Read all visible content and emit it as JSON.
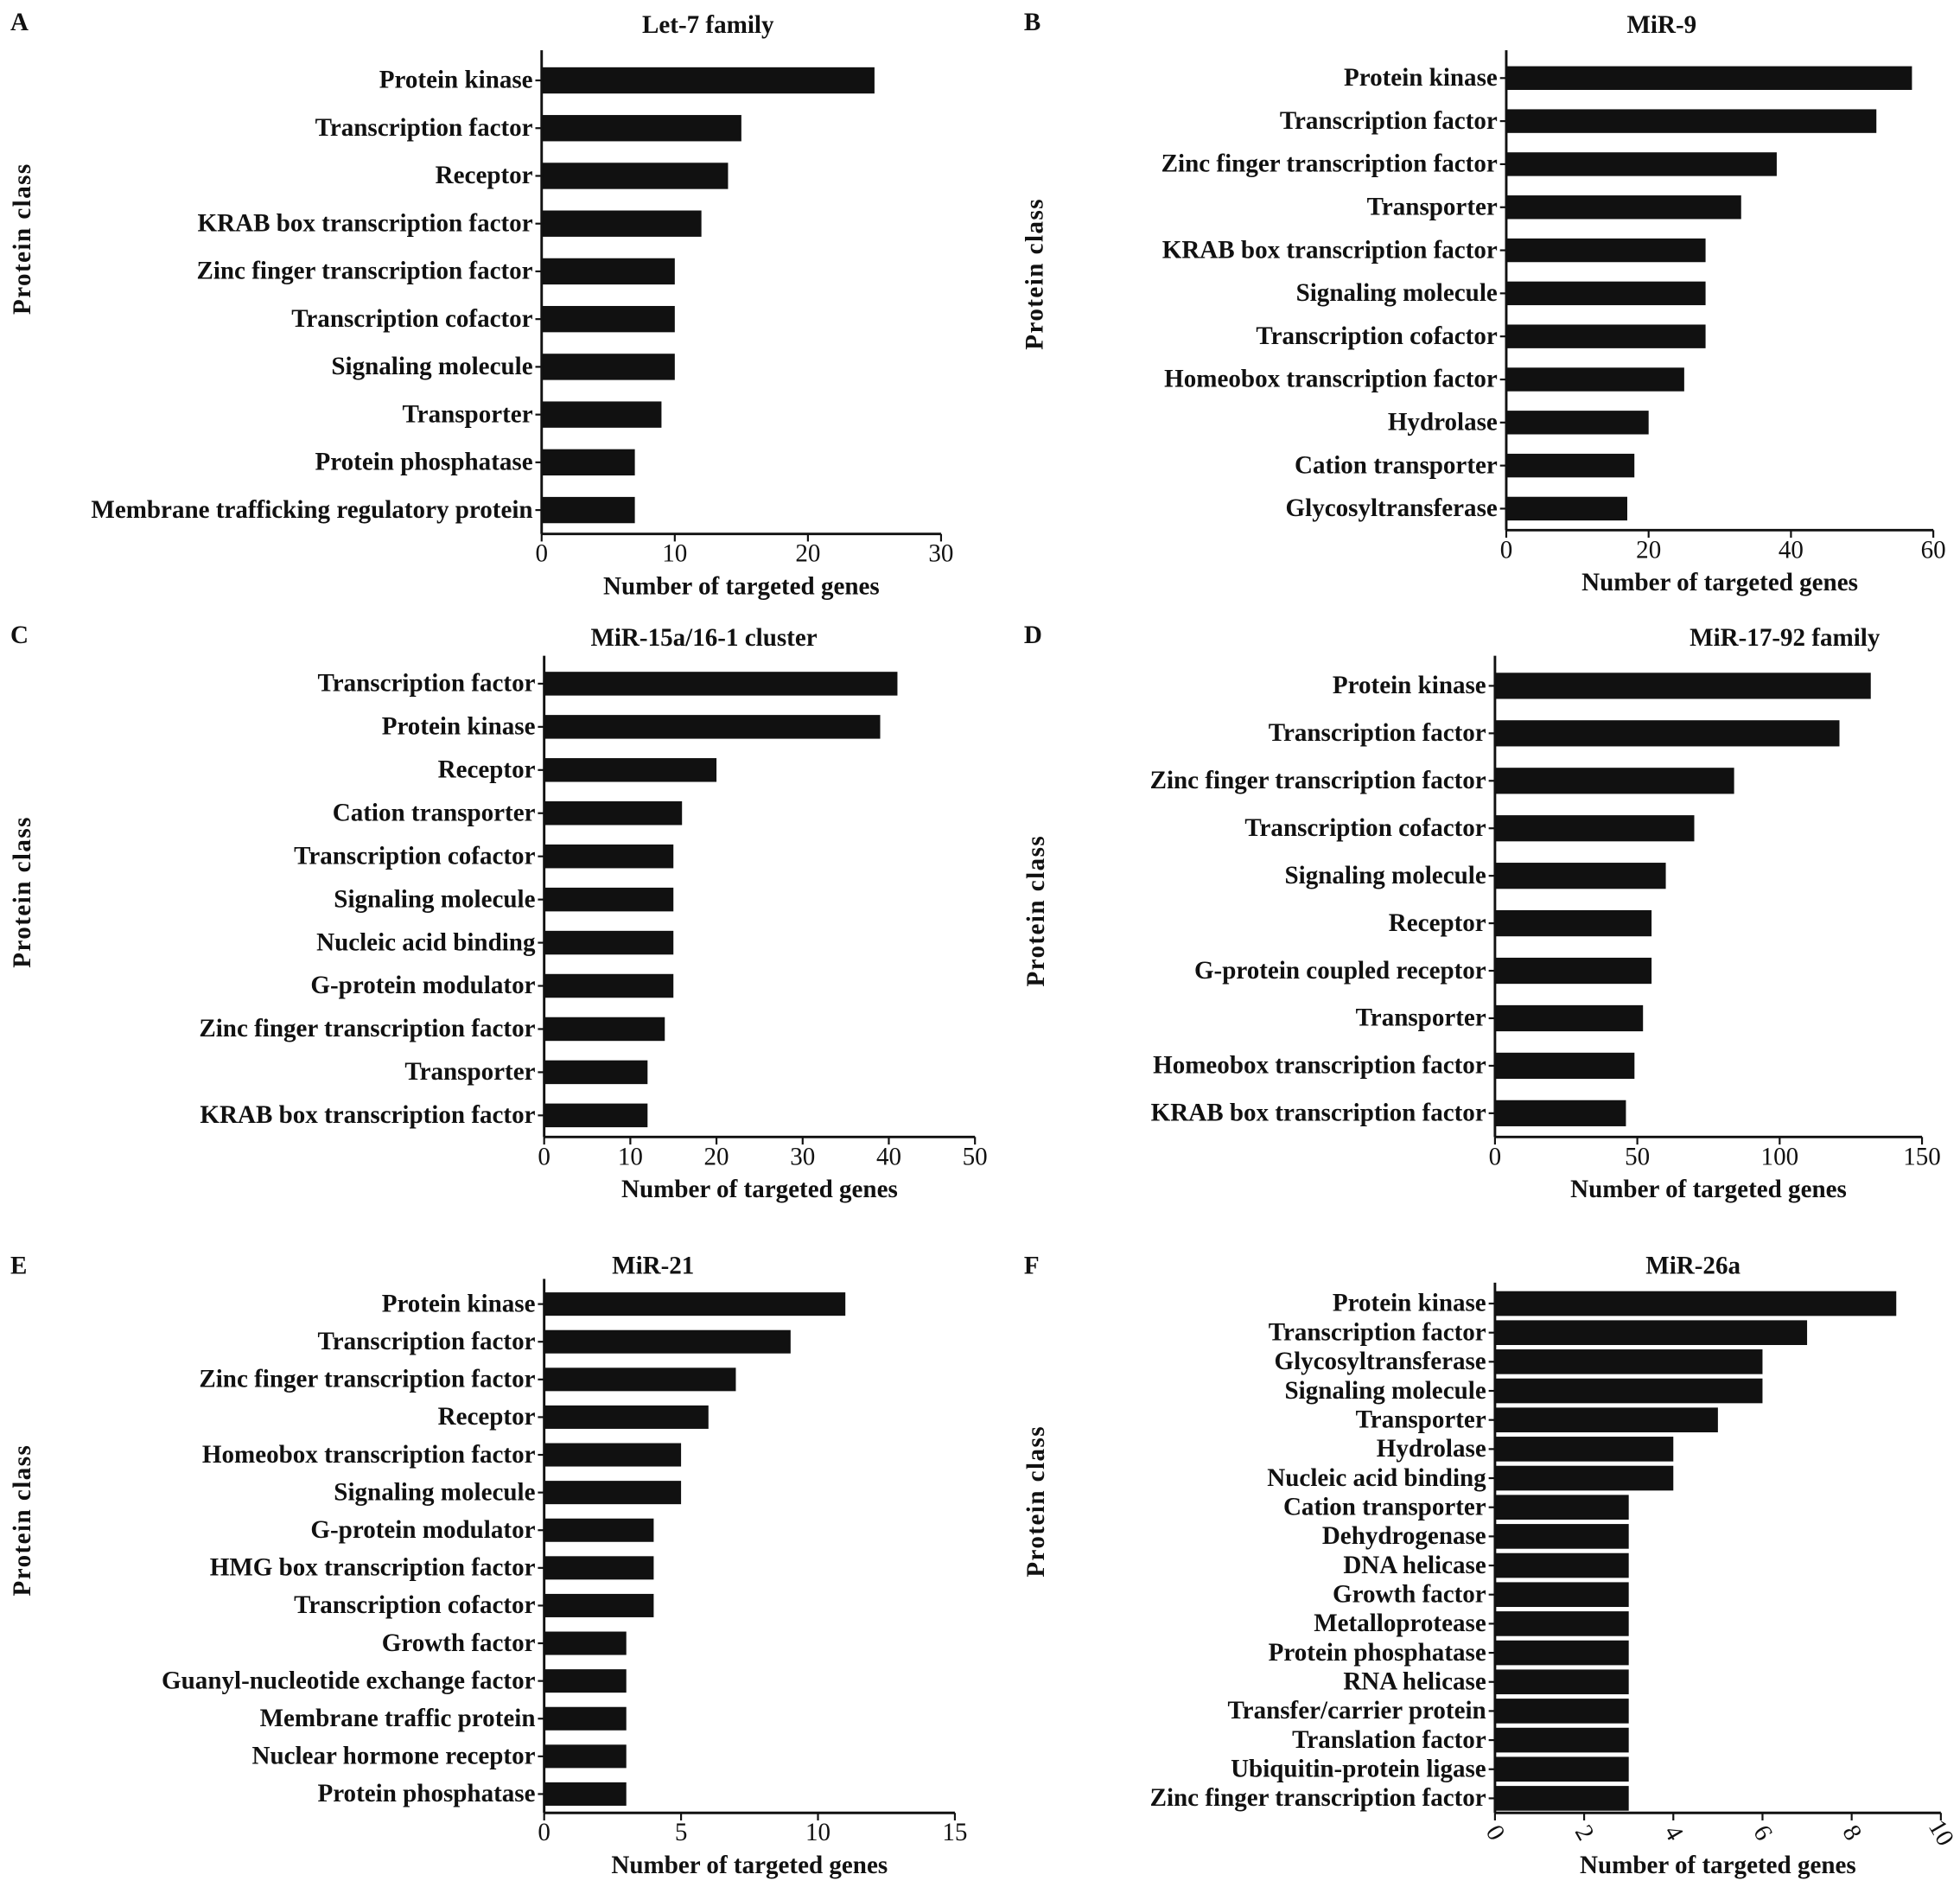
{
  "chart_data": [
    {
      "type": "bar",
      "orientation": "horizontal",
      "panel": "A",
      "title": "Let-7 family",
      "xlabel": "Number of targeted genes",
      "ylabel": "Protein class",
      "xlim": [
        0,
        30
      ],
      "xticks": [
        0,
        10,
        20,
        30
      ],
      "categories": [
        "Protein kinase",
        "Transcription factor",
        "Receptor",
        "KRAB box transcription factor",
        "Zinc finger transcription factor",
        "Transcription cofactor",
        "Signaling molecule",
        "Transporter",
        "Protein phosphatase",
        "Membrane trafficking regulatory protein"
      ],
      "values": [
        25,
        15,
        14,
        12,
        10,
        10,
        10,
        9,
        7,
        7
      ]
    },
    {
      "type": "bar",
      "orientation": "horizontal",
      "panel": "B",
      "title": "MiR-9",
      "xlabel": "Number of targeted genes",
      "ylabel": "Protein class",
      "xlim": [
        0,
        60
      ],
      "xticks": [
        0,
        20,
        40,
        60
      ],
      "categories": [
        "Protein  kinase",
        "Transcription factor",
        "Zinc finger transcription factor",
        "Transporter",
        "KRAB box transcription factor",
        "Signaling molecule",
        "Transcription cofactor",
        "Homeobox transcription factor",
        "Hydrolase",
        "Cation transporter",
        "Glycosyltransferase"
      ],
      "values": [
        57,
        52,
        38,
        33,
        28,
        28,
        28,
        25,
        20,
        18,
        17
      ]
    },
    {
      "type": "bar",
      "orientation": "horizontal",
      "panel": "C",
      "title": "MiR-15a/16-1  cluster",
      "xlabel": "Number of targeted genes",
      "ylabel": "Protein class",
      "xlim": [
        0,
        50
      ],
      "xticks": [
        0,
        10,
        20,
        30,
        40,
        50
      ],
      "categories": [
        "Transcription factor",
        "Protein kinase",
        "Receptor",
        "Cation transporter",
        "Transcription cofactor",
        "Signaling molecule",
        "Nucleic acid binding",
        "G-protein modulator",
        "Zinc finger transcription factor",
        "Transporter",
        "KRAB box transcription factor"
      ],
      "values": [
        41,
        39,
        20,
        16,
        15,
        15,
        15,
        15,
        14,
        12,
        12
      ]
    },
    {
      "type": "bar",
      "orientation": "horizontal",
      "panel": "D",
      "title": "MiR-17-92 family",
      "xlabel": "Number of targeted genes",
      "ylabel": "Protein class",
      "xlim": [
        0,
        150
      ],
      "xticks": [
        0,
        50,
        100,
        150
      ],
      "categories": [
        "Protein kinase",
        "Transcription factor",
        "Zinc finger transcription factor",
        "Transcription cofactor",
        "Signaling molecule",
        "Receptor",
        "G-protein coupled receptor",
        "Transporter",
        "Homeobox transcription factor",
        "KRAB box transcription factor"
      ],
      "values": [
        132,
        121,
        84,
        70,
        60,
        55,
        55,
        52,
        49,
        46
      ]
    },
    {
      "type": "bar",
      "orientation": "horizontal",
      "panel": "E",
      "title": "MiR-21",
      "xlabel": "Number of targeted genes",
      "ylabel": "Protein class",
      "xlim": [
        0,
        15
      ],
      "xticks": [
        0,
        5,
        10,
        15
      ],
      "categories": [
        "Protein kinase",
        "Transcription factor",
        "Zinc finger transcription factor",
        "Receptor",
        "Homeobox transcription factor",
        "Signaling molecule",
        "G-protein modulator",
        "HMG box transcription factor",
        "Transcription cofactor",
        "Growth factor",
        "Guanyl-nucleotide exchange factor",
        "Membrane traffic protein",
        "Nuclear hormone receptor",
        "Protein phosphatase"
      ],
      "values": [
        11,
        9,
        7,
        6,
        5,
        5,
        4,
        4,
        4,
        3,
        3,
        3,
        3,
        3
      ]
    },
    {
      "type": "bar",
      "orientation": "horizontal",
      "panel": "F",
      "title": "MiR-26a",
      "xlabel": "Number of targeted genes",
      "ylabel": "Protein class",
      "xlim": [
        0,
        10
      ],
      "xticks": [
        0,
        2,
        4,
        6,
        8,
        10
      ],
      "categories": [
        "Protein kinase",
        "Transcription factor",
        "Glycosyltransferase",
        "Signaling molecule",
        "Transporter",
        "Hydrolase",
        "Nucleic acid binding",
        "Cation transporter",
        "Dehydrogenase",
        "DNA helicase",
        "Growth factor",
        "Metalloprotease",
        "Protein phosphatase",
        "RNA helicase",
        "Transfer/carrier protein",
        "Translation factor",
        "Ubiquitin-protein ligase",
        "Zinc finger transcription factor"
      ],
      "values": [
        9,
        7,
        6,
        6,
        5,
        4,
        4,
        3,
        3,
        3,
        3,
        3,
        3,
        3,
        3,
        3,
        3,
        3
      ]
    }
  ],
  "colors": {
    "bar": "#111111",
    "axis": "#111111"
  }
}
